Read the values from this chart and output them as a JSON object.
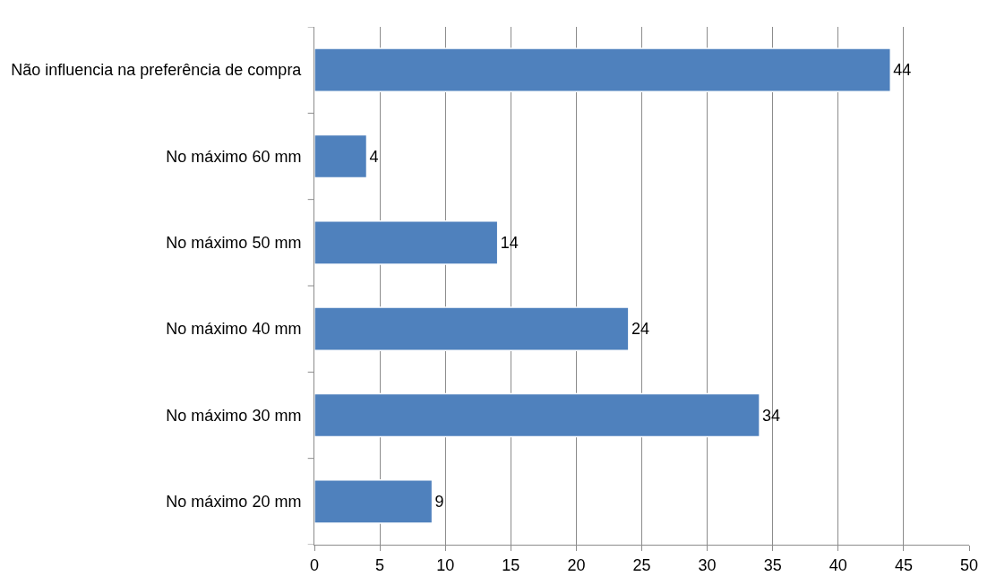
{
  "chart_data": {
    "type": "bar",
    "orientation": "horizontal",
    "categories": [
      "Não influencia na preferência de compra",
      "No máximo 60 mm",
      "No máximo 50 mm",
      "No máximo 40 mm",
      "No máximo 30 mm",
      "No máximo 20 mm"
    ],
    "values": [
      44,
      4,
      14,
      24,
      34,
      9
    ],
    "color": "#4f81bd",
    "xlim": [
      0,
      50
    ],
    "xticks": [
      0,
      5,
      10,
      15,
      20,
      25,
      30,
      35,
      40,
      45,
      50
    ],
    "grid": "x",
    "data_labels": true,
    "legend": false
  }
}
